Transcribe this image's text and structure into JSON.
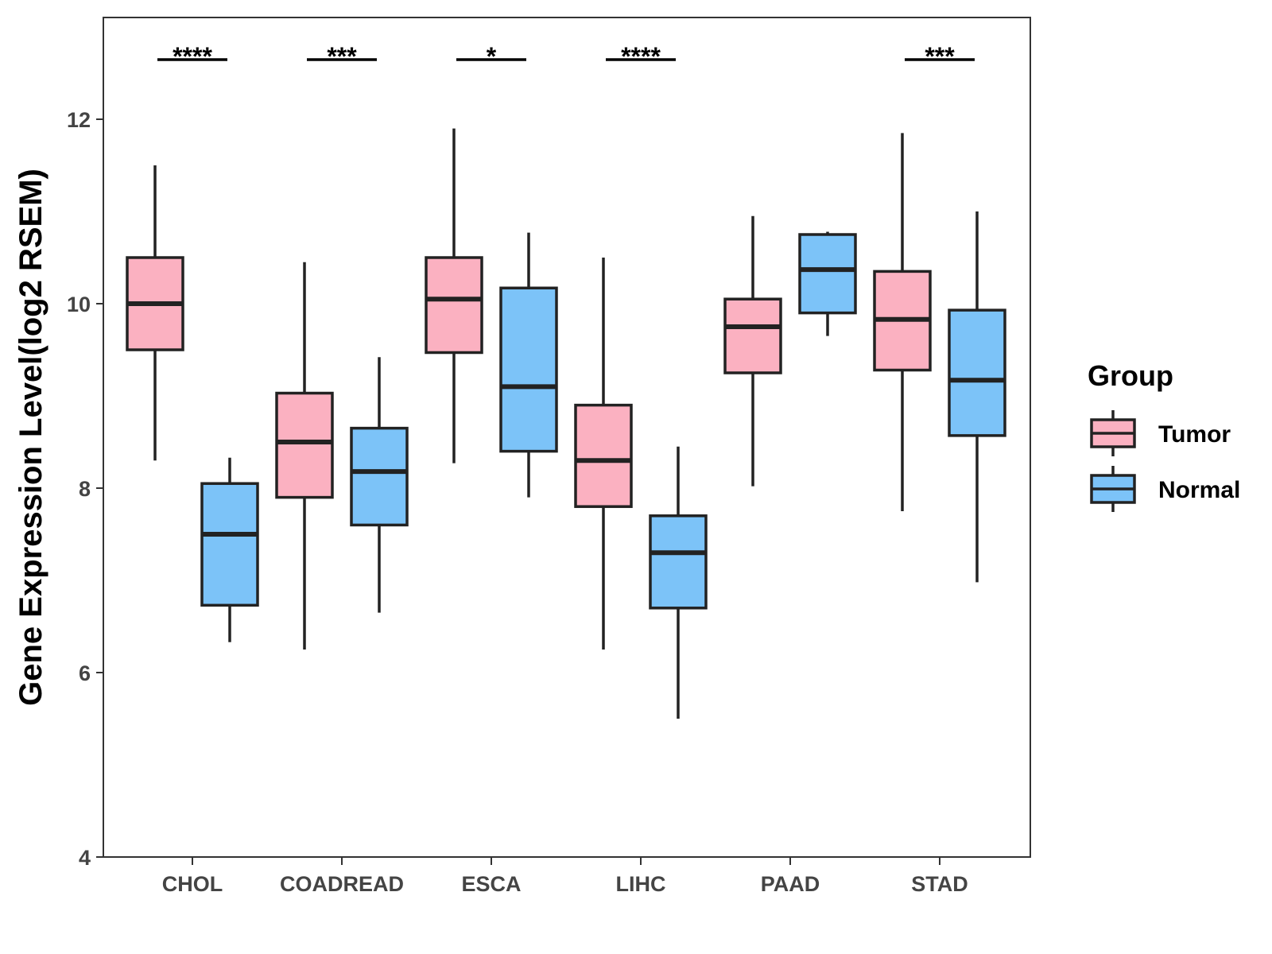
{
  "chart_data": {
    "type": "boxplot",
    "ylabel": "Gene Expression Level(log2 RSEM)",
    "ylim": [
      4,
      13
    ],
    "yticks": [
      4,
      6,
      8,
      10,
      12
    ],
    "grid": false,
    "legend": {
      "title": "Group",
      "position": "right",
      "items": [
        {
          "name": "Tumor",
          "color": "#FBB1C1"
        },
        {
          "name": "Normal",
          "color": "#7CC3F8"
        }
      ]
    },
    "categories": [
      "CHOL",
      "COADREAD",
      "ESCA",
      "LIHC",
      "PAAD",
      "STAD"
    ],
    "series": [
      {
        "name": "Tumor",
        "color": "#FBB1C1",
        "boxes": [
          {
            "min": 8.3,
            "q1": 9.5,
            "median": 10.0,
            "q3": 10.5,
            "max": 11.5
          },
          {
            "min": 6.25,
            "q1": 7.9,
            "median": 8.5,
            "q3": 9.03,
            "max": 10.45
          },
          {
            "min": 8.27,
            "q1": 9.47,
            "median": 10.05,
            "q3": 10.5,
            "max": 11.9
          },
          {
            "min": 6.25,
            "q1": 7.8,
            "median": 8.3,
            "q3": 8.9,
            "max": 10.5
          },
          {
            "min": 8.02,
            "q1": 9.25,
            "median": 9.75,
            "q3": 10.05,
            "max": 10.95
          },
          {
            "min": 7.75,
            "q1": 9.28,
            "median": 9.83,
            "q3": 10.35,
            "max": 11.85
          }
        ]
      },
      {
        "name": "Normal",
        "color": "#7CC3F8",
        "boxes": [
          {
            "min": 6.33,
            "q1": 6.73,
            "median": 7.5,
            "q3": 8.05,
            "max": 8.33
          },
          {
            "min": 6.65,
            "q1": 7.6,
            "median": 8.18,
            "q3": 8.65,
            "max": 9.42
          },
          {
            "min": 7.9,
            "q1": 8.4,
            "median": 9.1,
            "q3": 10.17,
            "max": 10.77
          },
          {
            "min": 5.5,
            "q1": 6.7,
            "median": 7.3,
            "q3": 7.7,
            "max": 8.45
          },
          {
            "min": 9.65,
            "q1": 9.9,
            "median": 10.37,
            "q3": 10.75,
            "max": 10.78
          },
          {
            "min": 6.98,
            "q1": 8.57,
            "median": 9.17,
            "q3": 9.93,
            "max": 11.0
          }
        ]
      }
    ],
    "significance": [
      "****",
      "***",
      "*",
      "****",
      "",
      "***"
    ]
  }
}
